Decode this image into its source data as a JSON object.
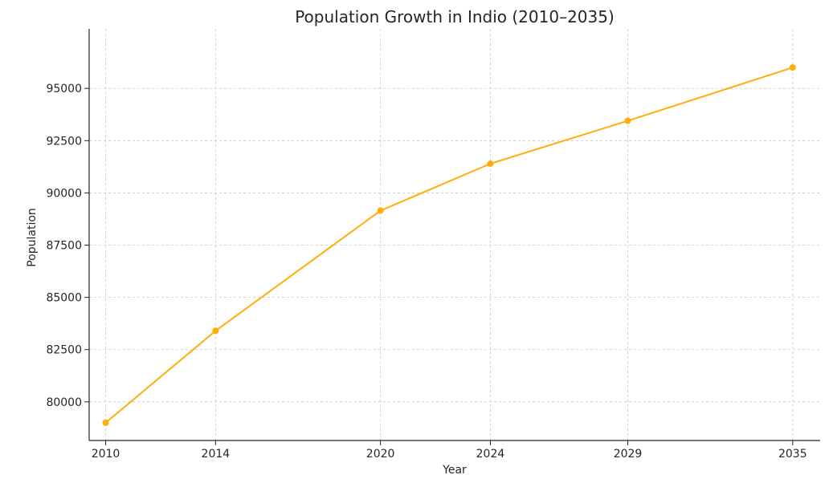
{
  "chart_data": {
    "type": "line",
    "title": "Population Growth in Indio (2010–2035)",
    "xlabel": "Year",
    "ylabel": "Population",
    "x": [
      2010,
      2014,
      2020,
      2024,
      2029,
      2035
    ],
    "x_ticks": [
      2010,
      2014,
      2020,
      2024,
      2029,
      2035
    ],
    "x_tick_labels": [
      "2010",
      "2014",
      "2020",
      "2024",
      "2029",
      "2035"
    ],
    "series": [
      {
        "values": [
          79000,
          83400,
          89150,
          91400,
          93450,
          96000
        ],
        "color": "#ffad0a"
      }
    ],
    "y_ticks": [
      80000,
      82500,
      85000,
      87500,
      90000,
      92500,
      95000
    ],
    "y_tick_labels": [
      "80000",
      "82500",
      "85000",
      "87500",
      "90000",
      "92500",
      "95000"
    ],
    "xlim": [
      2009.4,
      2036.0
    ],
    "ylim": [
      78150,
      97850
    ],
    "grid": true,
    "marker": "circle",
    "axis_color": "#262626",
    "grid_color": "#c8c8c8"
  }
}
